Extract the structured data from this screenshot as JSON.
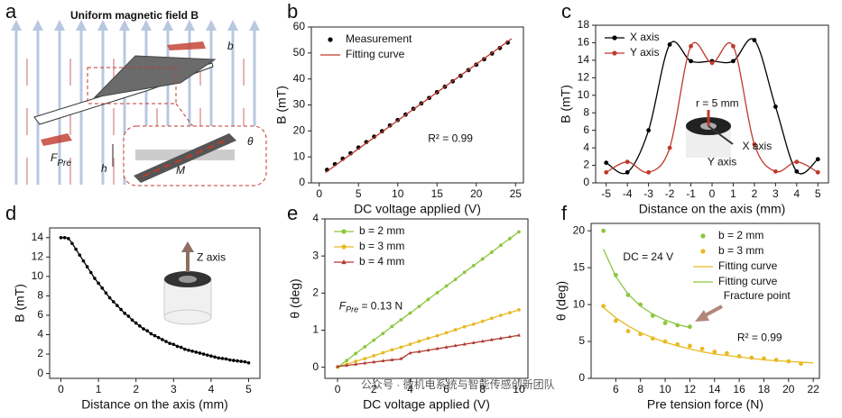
{
  "diagram": {
    "panel": "a",
    "labels": {
      "field": "Uniform magnetic field B",
      "width": "b",
      "force": "F",
      "force_sub": "Pre",
      "height": "h",
      "angle": "θ",
      "magnet": "M"
    }
  },
  "watermark": "公众号 · 微机电系统与智能传感创新团队",
  "chart_data": [
    {
      "panel": "b",
      "type": "scatter",
      "x_label": "DC voltage applied (V)",
      "y_label": "B (mT)",
      "xlim": [
        -1,
        26
      ],
      "ylim": [
        0,
        60
      ],
      "xticks": [
        0,
        5,
        10,
        15,
        20,
        25
      ],
      "yticks": [
        0,
        10,
        20,
        30,
        40,
        50,
        60
      ],
      "legend": "upper left",
      "series": [
        {
          "name": "Measurement",
          "color": "#000000",
          "mode": "markers",
          "marker": "circle",
          "x": [
            1,
            2,
            3,
            4,
            5,
            6,
            7,
            8,
            9,
            10,
            11,
            12,
            13,
            14,
            15,
            16,
            17,
            18,
            19,
            20,
            21,
            22,
            23,
            24
          ],
          "values": [
            5.0,
            7.2,
            9.3,
            11.4,
            13.6,
            15.7,
            17.8,
            19.9,
            22.1,
            24.2,
            26.3,
            28.5,
            30.6,
            32.7,
            34.9,
            37.0,
            39.1,
            41.2,
            43.4,
            45.5,
            47.6,
            49.8,
            51.9,
            54.0
          ]
        },
        {
          "name": "Fitting curve",
          "color": "#c0392b",
          "mode": "line",
          "x": [
            0.8,
            24.5
          ],
          "values": [
            4.0,
            55.5
          ]
        }
      ],
      "annotations": [
        {
          "text": "R² = 0.99"
        }
      ]
    },
    {
      "panel": "c",
      "type": "line",
      "x_label": "Distance on the axis (mm)",
      "y_label": "B (mT)",
      "xlim": [
        -5.5,
        5.5
      ],
      "ylim": [
        0,
        18
      ],
      "xticks": [
        -5,
        -4,
        -3,
        -2,
        -1,
        0,
        1,
        2,
        3,
        4,
        5
      ],
      "yticks": [
        0,
        2,
        4,
        6,
        8,
        10,
        12,
        14,
        16,
        18
      ],
      "legend": "upper left",
      "series": [
        {
          "name": "X axis",
          "color": "#000000",
          "mode": "lines+markers",
          "marker": "circle",
          "x": [
            -5,
            -4,
            -3,
            -2,
            -1,
            0,
            1,
            2,
            3,
            4,
            5
          ],
          "values": [
            2.3,
            1.2,
            6.0,
            15.8,
            13.9,
            13.9,
            13.9,
            16.3,
            8.7,
            1.3,
            2.7
          ]
        },
        {
          "name": "Y axis",
          "color": "#c0392b",
          "mode": "lines+markers",
          "marker": "circle",
          "x": [
            -5,
            -4,
            -3,
            -2,
            -1,
            0,
            1,
            2,
            3,
            4,
            5
          ],
          "values": [
            1.2,
            2.4,
            1.2,
            4.0,
            15.6,
            13.7,
            15.6,
            4.4,
            1.3,
            2.4,
            1.2
          ]
        }
      ],
      "annotations": [
        {
          "text": "r = 5 mm"
        },
        {
          "text": "X axis"
        },
        {
          "text": "Y axis"
        }
      ]
    },
    {
      "panel": "d",
      "type": "line",
      "x_label": "Distance on the axis (mm)",
      "y_label": "B (mT)",
      "xlim": [
        -0.3,
        5.3
      ],
      "ylim": [
        -0.5,
        15
      ],
      "xticks": [
        0,
        1,
        2,
        3,
        4,
        5
      ],
      "yticks": [
        0,
        2,
        4,
        6,
        8,
        10,
        12,
        14
      ],
      "series": [
        {
          "color": "#000000",
          "mode": "lines+markers",
          "marker": "circle",
          "x": [
            0,
            0.1,
            0.2,
            0.3,
            0.4,
            0.5,
            0.6,
            0.7,
            0.8,
            0.9,
            1.0,
            1.1,
            1.2,
            1.3,
            1.4,
            1.5,
            1.6,
            1.7,
            1.8,
            1.9,
            2.0,
            2.1,
            2.2,
            2.3,
            2.4,
            2.5,
            2.6,
            2.7,
            2.8,
            2.9,
            3.0,
            3.1,
            3.2,
            3.3,
            3.4,
            3.5,
            3.6,
            3.7,
            3.8,
            3.9,
            4.0,
            4.1,
            4.2,
            4.3,
            4.4,
            4.5,
            4.6,
            4.7,
            4.8,
            4.9,
            5.0
          ],
          "values": [
            14.0,
            14.0,
            13.9,
            13.4,
            12.8,
            12.2,
            11.6,
            11.0,
            10.4,
            9.8,
            9.3,
            8.8,
            8.3,
            7.8,
            7.4,
            7.0,
            6.6,
            6.2,
            5.9,
            5.5,
            5.2,
            4.9,
            4.6,
            4.4,
            4.1,
            3.9,
            3.7,
            3.5,
            3.3,
            3.1,
            3.0,
            2.8,
            2.7,
            2.5,
            2.4,
            2.3,
            2.2,
            2.1,
            2.0,
            1.9,
            1.8,
            1.7,
            1.6,
            1.55,
            1.5,
            1.4,
            1.35,
            1.3,
            1.25,
            1.2,
            1.1
          ]
        }
      ],
      "annotations": [
        {
          "text": "Z axis"
        }
      ]
    },
    {
      "panel": "e",
      "type": "line",
      "x_label": "DC voltage applied (V)",
      "y_label": "θ (deg)",
      "xlim": [
        -0.7,
        10.5
      ],
      "ylim": [
        -0.3,
        4
      ],
      "xticks": [
        0,
        2,
        4,
        6,
        8,
        10
      ],
      "yticks": [
        0,
        1,
        2,
        3,
        4
      ],
      "legend": "upper left",
      "series": [
        {
          "name": "b = 2 mm",
          "color": "#8cc63f",
          "mode": "lines+markers",
          "marker": "circle",
          "x": [
            0,
            0.5,
            1,
            1.5,
            2,
            2.5,
            3,
            3.5,
            4,
            4.5,
            5,
            5.5,
            6,
            6.5,
            7,
            7.5,
            8,
            8.5,
            9,
            9.5,
            10
          ],
          "values": [
            0,
            0.18,
            0.37,
            0.55,
            0.73,
            0.91,
            1.1,
            1.28,
            1.46,
            1.64,
            1.83,
            2.01,
            2.19,
            2.37,
            2.56,
            2.74,
            2.92,
            3.1,
            3.29,
            3.47,
            3.65
          ]
        },
        {
          "name": "b = 3 mm",
          "color": "#e8b923",
          "mode": "lines+markers",
          "marker": "circle",
          "x": [
            0,
            0.5,
            1,
            1.5,
            2,
            2.5,
            3,
            3.5,
            4,
            4.5,
            5,
            5.5,
            6,
            6.5,
            7,
            7.5,
            8,
            8.5,
            9,
            9.5,
            10
          ],
          "values": [
            0,
            0.08,
            0.16,
            0.23,
            0.31,
            0.39,
            0.47,
            0.54,
            0.62,
            0.7,
            0.78,
            0.85,
            0.93,
            1.01,
            1.09,
            1.16,
            1.24,
            1.32,
            1.4,
            1.47,
            1.55
          ]
        },
        {
          "name": "b = 4 mm",
          "color": "#b03a2e",
          "mode": "lines+markers",
          "marker": "triangle",
          "x": [
            0,
            0.5,
            1,
            1.5,
            2,
            2.5,
            3,
            3.5,
            4,
            4.5,
            5,
            5.5,
            6,
            6.5,
            7,
            7.5,
            8,
            8.5,
            9,
            9.5,
            10
          ],
          "values": [
            0.02,
            0.05,
            0.08,
            0.11,
            0.14,
            0.17,
            0.2,
            0.23,
            0.38,
            0.42,
            0.46,
            0.5,
            0.54,
            0.58,
            0.62,
            0.66,
            0.7,
            0.74,
            0.78,
            0.82,
            0.86
          ]
        }
      ],
      "annotations": [
        {
          "symbol": "F",
          "subscript": "Pre",
          "text": " = 0.13 N"
        }
      ]
    },
    {
      "panel": "f",
      "type": "scatter",
      "x_label": "Pre tension force (N)",
      "y_label": "θ (deg)",
      "xlim": [
        4,
        22.5
      ],
      "ylim": [
        0,
        21
      ],
      "xticks": [
        6,
        8,
        10,
        12,
        14,
        16,
        18,
        20,
        22
      ],
      "yticks": [
        0,
        5,
        10,
        15,
        20
      ],
      "legend": "upper right",
      "series": [
        {
          "name": "b = 2 mm",
          "color": "#8cc63f",
          "mode": "markers",
          "marker": "circle",
          "x": [
            5,
            6,
            7,
            8,
            9,
            10,
            11,
            12
          ],
          "values": [
            20,
            14,
            11.3,
            10,
            8.5,
            7.5,
            7.2,
            7.0
          ]
        },
        {
          "name": "b = 3 mm",
          "color": "#e8b923",
          "mode": "markers",
          "marker": "circle",
          "x": [
            5,
            6,
            7,
            8,
            9,
            10,
            11,
            12,
            13,
            14,
            15,
            16,
            17,
            18,
            19,
            20,
            21
          ],
          "values": [
            9.8,
            7.8,
            6.4,
            6.0,
            5.4,
            5.0,
            4.6,
            4.4,
            4.0,
            3.6,
            3.4,
            3.0,
            2.8,
            2.7,
            2.5,
            2.3,
            2.0
          ]
        },
        {
          "name": "Fitting curve",
          "color": "#e8b923",
          "mode": "line",
          "x": [
            5,
            6,
            7,
            8,
            9,
            10,
            11,
            12,
            13,
            14,
            15,
            16,
            17,
            18,
            19,
            20,
            21,
            22
          ],
          "values": [
            9.6,
            8.2,
            7.1,
            6.2,
            5.5,
            4.9,
            4.4,
            4.0,
            3.6,
            3.3,
            3.1,
            2.9,
            2.7,
            2.5,
            2.4,
            2.3,
            2.2,
            2.1
          ]
        },
        {
          "name": "Fitting curve",
          "color": "#8cc63f",
          "mode": "line",
          "x": [
            5,
            6,
            7,
            8,
            9,
            10,
            11,
            12
          ],
          "values": [
            17.5,
            13.8,
            11.4,
            9.8,
            8.7,
            7.9,
            7.3,
            6.9
          ]
        }
      ],
      "annotations": [
        {
          "text": "DC = 24 V"
        },
        {
          "text": "Fracture point"
        },
        {
          "text": "R² = 0.99"
        }
      ]
    }
  ]
}
